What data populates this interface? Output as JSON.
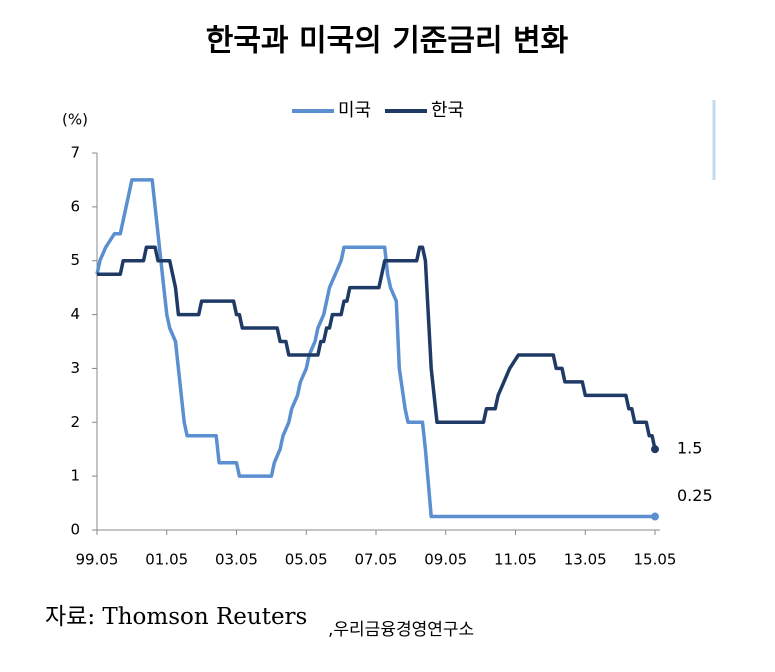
{
  "chart_data": {
    "type": "line",
    "title": "한국과 미국의 기준금리 변화",
    "y_label": "(%)",
    "ylim": [
      0,
      7
    ],
    "yticks": [
      0,
      1,
      2,
      3,
      4,
      5,
      6,
      7
    ],
    "xticks": [
      "99.05",
      "01.05",
      "03.05",
      "05.05",
      "07.05",
      "09.05",
      "11.05",
      "13.05",
      "15.05"
    ],
    "series": [
      {
        "name": "미국",
        "color": "#5b8fd0",
        "x": [
          "99.05",
          "99.06",
          "99.08",
          "99.11",
          "00.01",
          "00.02",
          "00.03",
          "00.05",
          "00.12",
          "01.01",
          "01.02",
          "01.03",
          "01.04",
          "01.05",
          "01.06",
          "01.08",
          "01.09",
          "01.10",
          "01.11",
          "01.12",
          "02.10",
          "02.11",
          "03.05",
          "03.06",
          "04.05",
          "04.06",
          "04.08",
          "04.09",
          "04.11",
          "04.12",
          "05.02",
          "05.03",
          "05.05",
          "05.06",
          "05.08",
          "05.09",
          "05.11",
          "05.12",
          "06.01",
          "06.03",
          "06.05",
          "06.06",
          "07.08",
          "07.09",
          "07.10",
          "07.12",
          "08.01",
          "08.03",
          "08.04",
          "08.09",
          "08.10",
          "08.12",
          "15.05"
        ],
        "values": [
          4.75,
          5.0,
          5.25,
          5.5,
          5.5,
          5.75,
          6.0,
          6.5,
          6.5,
          6.0,
          5.5,
          5.0,
          4.5,
          4.0,
          3.75,
          3.5,
          3.0,
          2.5,
          2.0,
          1.75,
          1.75,
          1.25,
          1.25,
          1.0,
          1.0,
          1.25,
          1.5,
          1.75,
          2.0,
          2.25,
          2.5,
          2.75,
          3.0,
          3.25,
          3.5,
          3.75,
          4.0,
          4.25,
          4.5,
          4.75,
          5.0,
          5.25,
          5.25,
          4.75,
          4.5,
          4.25,
          3.0,
          2.25,
          2.0,
          2.0,
          1.5,
          0.25,
          0.25
        ]
      },
      {
        "name": "한국",
        "color": "#1f3a64",
        "x": [
          "99.05",
          "00.01",
          "00.02",
          "00.09",
          "00.10",
          "01.01",
          "01.02",
          "01.06",
          "01.07",
          "01.08",
          "01.09",
          "02.04",
          "02.05",
          "03.04",
          "03.05",
          "03.06",
          "03.07",
          "04.07",
          "04.08",
          "04.10",
          "04.11",
          "05.09",
          "05.10",
          "05.11",
          "05.12",
          "06.01",
          "06.02",
          "06.05",
          "06.06",
          "06.07",
          "06.08",
          "07.06",
          "07.07",
          "07.08",
          "08.07",
          "08.08",
          "08.09",
          "08.10",
          "08.11",
          "08.12",
          "09.01",
          "09.02",
          "10.06",
          "10.07",
          "10.10",
          "10.11",
          "11.01",
          "11.03",
          "11.06",
          "12.06",
          "12.07",
          "12.09",
          "12.10",
          "13.04",
          "13.05",
          "14.07",
          "14.08",
          "14.09",
          "14.10",
          "15.02",
          "15.03",
          "15.04",
          "15.05"
        ],
        "values": [
          4.75,
          4.75,
          5.0,
          5.0,
          5.25,
          5.25,
          5.0,
          5.0,
          4.75,
          4.5,
          4.0,
          4.0,
          4.25,
          4.25,
          4.0,
          4.0,
          3.75,
          3.75,
          3.5,
          3.5,
          3.25,
          3.25,
          3.5,
          3.5,
          3.75,
          3.75,
          4.0,
          4.0,
          4.25,
          4.25,
          4.5,
          4.5,
          4.75,
          5.0,
          5.0,
          5.25,
          5.25,
          5.0,
          4.0,
          3.0,
          2.5,
          2.0,
          2.0,
          2.25,
          2.25,
          2.5,
          2.75,
          3.0,
          3.25,
          3.25,
          3.0,
          3.0,
          2.75,
          2.75,
          2.5,
          2.5,
          2.25,
          2.25,
          2.0,
          2.0,
          1.75,
          1.75,
          1.5
        ]
      }
    ],
    "source": "자료:  Thomson  Reuters",
    "source2": ",우리금융경영연구소"
  }
}
